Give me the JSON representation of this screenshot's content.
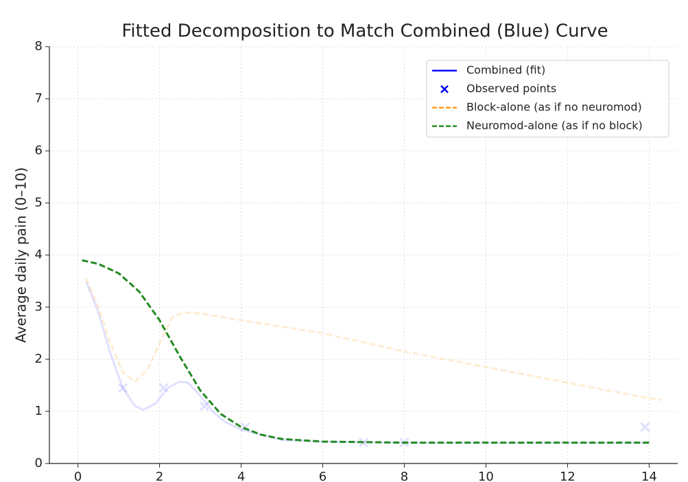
{
  "chart_data": {
    "type": "line",
    "title": "Fitted Decomposition to Match Combined (Blue) Curve",
    "y_label": "Average daily pain (0–10)",
    "xlim": [
      -0.7,
      14.7
    ],
    "ylim": [
      0,
      8
    ],
    "xticks": [
      0,
      2,
      4,
      6,
      8,
      10,
      12,
      14
    ],
    "yticks": [
      0,
      1,
      2,
      3,
      4,
      5,
      6,
      7,
      8
    ],
    "grid": true,
    "legend": "upper right",
    "series": [
      {
        "name": "Combined (fit)",
        "color": "#0000ff",
        "alpha": 0.12,
        "linestyle": "solid",
        "x": [
          0.2,
          0.5,
          0.8,
          1.1,
          1.4,
          1.6,
          1.9,
          2.2,
          2.5,
          2.7,
          3.0,
          3.3,
          3.6,
          4.0,
          5.0,
          6.0,
          8.0,
          10.0,
          12.0,
          14.0
        ],
        "values": [
          3.5,
          2.9,
          2.1,
          1.45,
          1.1,
          1.03,
          1.15,
          1.45,
          1.57,
          1.55,
          1.3,
          1.0,
          0.8,
          0.65,
          0.45,
          0.42,
          0.4,
          0.4,
          0.4,
          0.4
        ]
      },
      {
        "name": "Observed points",
        "color": "#0000ff",
        "alpha": 0.12,
        "marker": "x",
        "x": [
          1.1,
          2.1,
          3.1,
          4.1,
          7.0,
          8.0,
          13.9
        ],
        "values": [
          1.45,
          1.45,
          1.1,
          0.7,
          0.4,
          0.4,
          0.7
        ]
      },
      {
        "name": "Block-alone (as if no neuromod)",
        "color": "#ff9f1c",
        "alpha": 0.2,
        "linestyle": "dashed",
        "x": [
          0.2,
          0.5,
          0.8,
          1.1,
          1.4,
          1.7,
          2.0,
          2.3,
          2.6,
          3.0,
          4.0,
          6.0,
          8.0,
          10.0,
          12.0,
          14.0,
          14.3
        ],
        "values": [
          3.55,
          3.0,
          2.3,
          1.75,
          1.57,
          1.8,
          2.3,
          2.8,
          2.9,
          2.88,
          2.75,
          2.5,
          2.15,
          1.85,
          1.55,
          1.25,
          1.22
        ]
      },
      {
        "name": "Neuromod-alone (as if no block)",
        "color": "#228b22",
        "alpha": 1,
        "linestyle": "dashed",
        "x": [
          0.1,
          0.5,
          1.0,
          1.5,
          2.0,
          2.5,
          3.0,
          3.5,
          4.0,
          4.5,
          5.0,
          6.0,
          8.0,
          10.0,
          12.0,
          14.0
        ],
        "values": [
          3.9,
          3.83,
          3.65,
          3.3,
          2.75,
          2.05,
          1.4,
          0.95,
          0.7,
          0.55,
          0.47,
          0.42,
          0.4,
          0.4,
          0.4,
          0.4
        ]
      }
    ]
  }
}
